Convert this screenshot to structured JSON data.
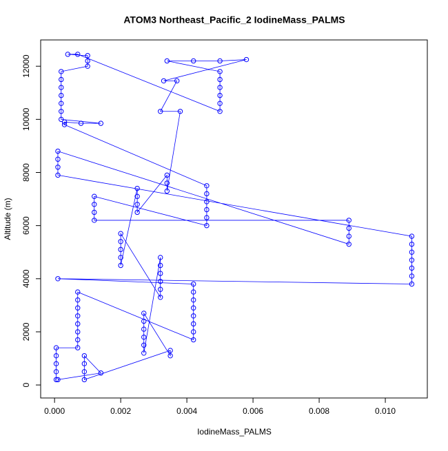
{
  "chart_data": {
    "type": "scatter",
    "connect": true,
    "title": "ATOM3 Northeast_Pacific_2 IodineMass_PALMS",
    "x_label": "IodineMass_PALMS",
    "y_label": "Altitude (m)",
    "color": "#0000ff",
    "xlim": [
      -0.00042,
      0.01127
    ],
    "ylim": [
      -490,
      12990
    ],
    "xticks": [
      {
        "value": 0,
        "label": "0.000"
      },
      {
        "value": 0.002,
        "label": "0.002"
      },
      {
        "value": 0.004,
        "label": "0.004"
      },
      {
        "value": 0.006,
        "label": "0.006"
      },
      {
        "value": 0.008,
        "label": "0.008"
      },
      {
        "value": 0.01,
        "label": "0.010"
      }
    ],
    "yticks": [
      0,
      2000,
      4000,
      6000,
      8000,
      10000,
      12000
    ],
    "x": [
      5e-05,
      5e-05,
      5e-05,
      5e-05,
      5e-05,
      0.0007,
      0.0007,
      0.0007,
      0.0007,
      0.0007,
      0.0007,
      0.0007,
      0.0007,
      0.0042,
      0.0042,
      0.0042,
      0.0042,
      0.0042,
      0.0042,
      0.0042,
      0.0042,
      0.0001,
      0.0108,
      0.0108,
      0.0108,
      0.0108,
      0.0108,
      0.0108,
      0.0108,
      0.0001,
      0.0001,
      0.0001,
      0.0001,
      0.0089,
      0.0089,
      0.0089,
      0.0089,
      0.0012,
      0.0012,
      0.0012,
      0.0012,
      0.0046,
      0.0046,
      0.0046,
      0.0046,
      0.0046,
      0.0046,
      0.0003,
      0.0003,
      0.0008,
      0.0014,
      0.0002,
      0.0002,
      0.0002,
      0.0002,
      0.0002,
      0.0002,
      0.0002,
      0.001,
      0.001,
      0.001,
      0.0004,
      0.0007,
      0.005,
      0.005,
      0.005,
      0.005,
      0.005,
      0.005,
      0.0034,
      0.0042,
      0.005,
      0.0058,
      0.0033,
      0.0037,
      0.0032,
      0.0038,
      0.0034,
      0.0034,
      0.0034,
      0.0025,
      0.0025,
      0.0025,
      0.0025,
      0.002,
      0.002,
      0.002,
      0.002,
      0.002,
      0.0032,
      0.0032,
      0.0032,
      0.0032,
      0.0032,
      0.0032,
      0.0027,
      0.0027,
      0.0027,
      0.0027,
      0.0027,
      0.0027,
      0.0035,
      0.0035,
      0.0009,
      0.0009,
      0.0009,
      0.0009,
      0.0014,
      0.0001
    ],
    "values": [
      200,
      500,
      800,
      1100,
      1400,
      1400,
      1700,
      2000,
      2300,
      2600,
      2900,
      3200,
      3500,
      1700,
      2000,
      2300,
      2600,
      2900,
      3200,
      3500,
      3800,
      4000,
      3800,
      4100,
      4400,
      4700,
      5000,
      5300,
      5600,
      7900,
      8200,
      8500,
      8800,
      5300,
      5600,
      5900,
      6200,
      6200,
      6500,
      6800,
      7100,
      6000,
      6300,
      6600,
      6900,
      7200,
      7500,
      9800,
      9900,
      9850,
      9850,
      10000,
      10300,
      10600,
      10900,
      11200,
      11500,
      11800,
      12000,
      12200,
      12400,
      12450,
      12450,
      10300,
      10600,
      10900,
      11200,
      11500,
      11800,
      12200,
      12200,
      12200,
      12250,
      11450,
      11450,
      10300,
      10300,
      7300,
      7600,
      7900,
      6500,
      6800,
      7100,
      7400,
      4500,
      4800,
      5100,
      5400,
      5700,
      3300,
      3600,
      3900,
      4200,
      4500,
      4800,
      1200,
      1500,
      1800,
      2100,
      2400,
      2700,
      1100,
      1300,
      200,
      500,
      800,
      1100,
      450,
      200
    ]
  }
}
